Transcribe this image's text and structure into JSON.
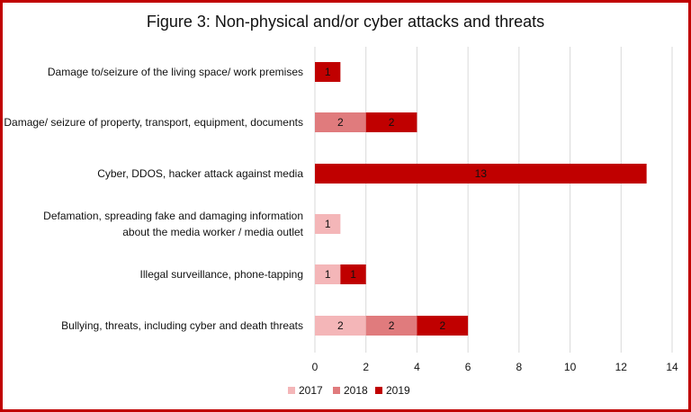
{
  "chart_data": {
    "type": "bar",
    "orientation": "horizontal",
    "stacked": true,
    "title": "Figure 3: Non-physical and/or cyber attacks and threats",
    "categories": [
      [
        "Damage to/seizure of the living space/ work premises"
      ],
      [
        "Damage/ seizure of property, transport, equipment, documents"
      ],
      [
        "Cyber, DDOS, hacker attack against media"
      ],
      [
        "Defamation, spreading fake and damaging information",
        "about the media worker / media outlet"
      ],
      [
        "Illegal surveillance, phone-tapping"
      ],
      [
        "Bullying, threats, including cyber and death threats"
      ]
    ],
    "series": [
      {
        "name": "2017",
        "color": "#f4b6b8",
        "values": [
          0,
          0,
          0,
          1,
          1,
          2
        ]
      },
      {
        "name": "2018",
        "color": "#e07b7d",
        "values": [
          0,
          2,
          0,
          0,
          0,
          2
        ]
      },
      {
        "name": "2019",
        "color": "#c00000",
        "values": [
          1,
          2,
          13,
          0,
          1,
          2
        ]
      }
    ],
    "xlim": [
      0,
      14
    ],
    "xticks": [
      0,
      2,
      4,
      6,
      8,
      10,
      12,
      14
    ],
    "grid": true,
    "legend_position": "bottom"
  }
}
